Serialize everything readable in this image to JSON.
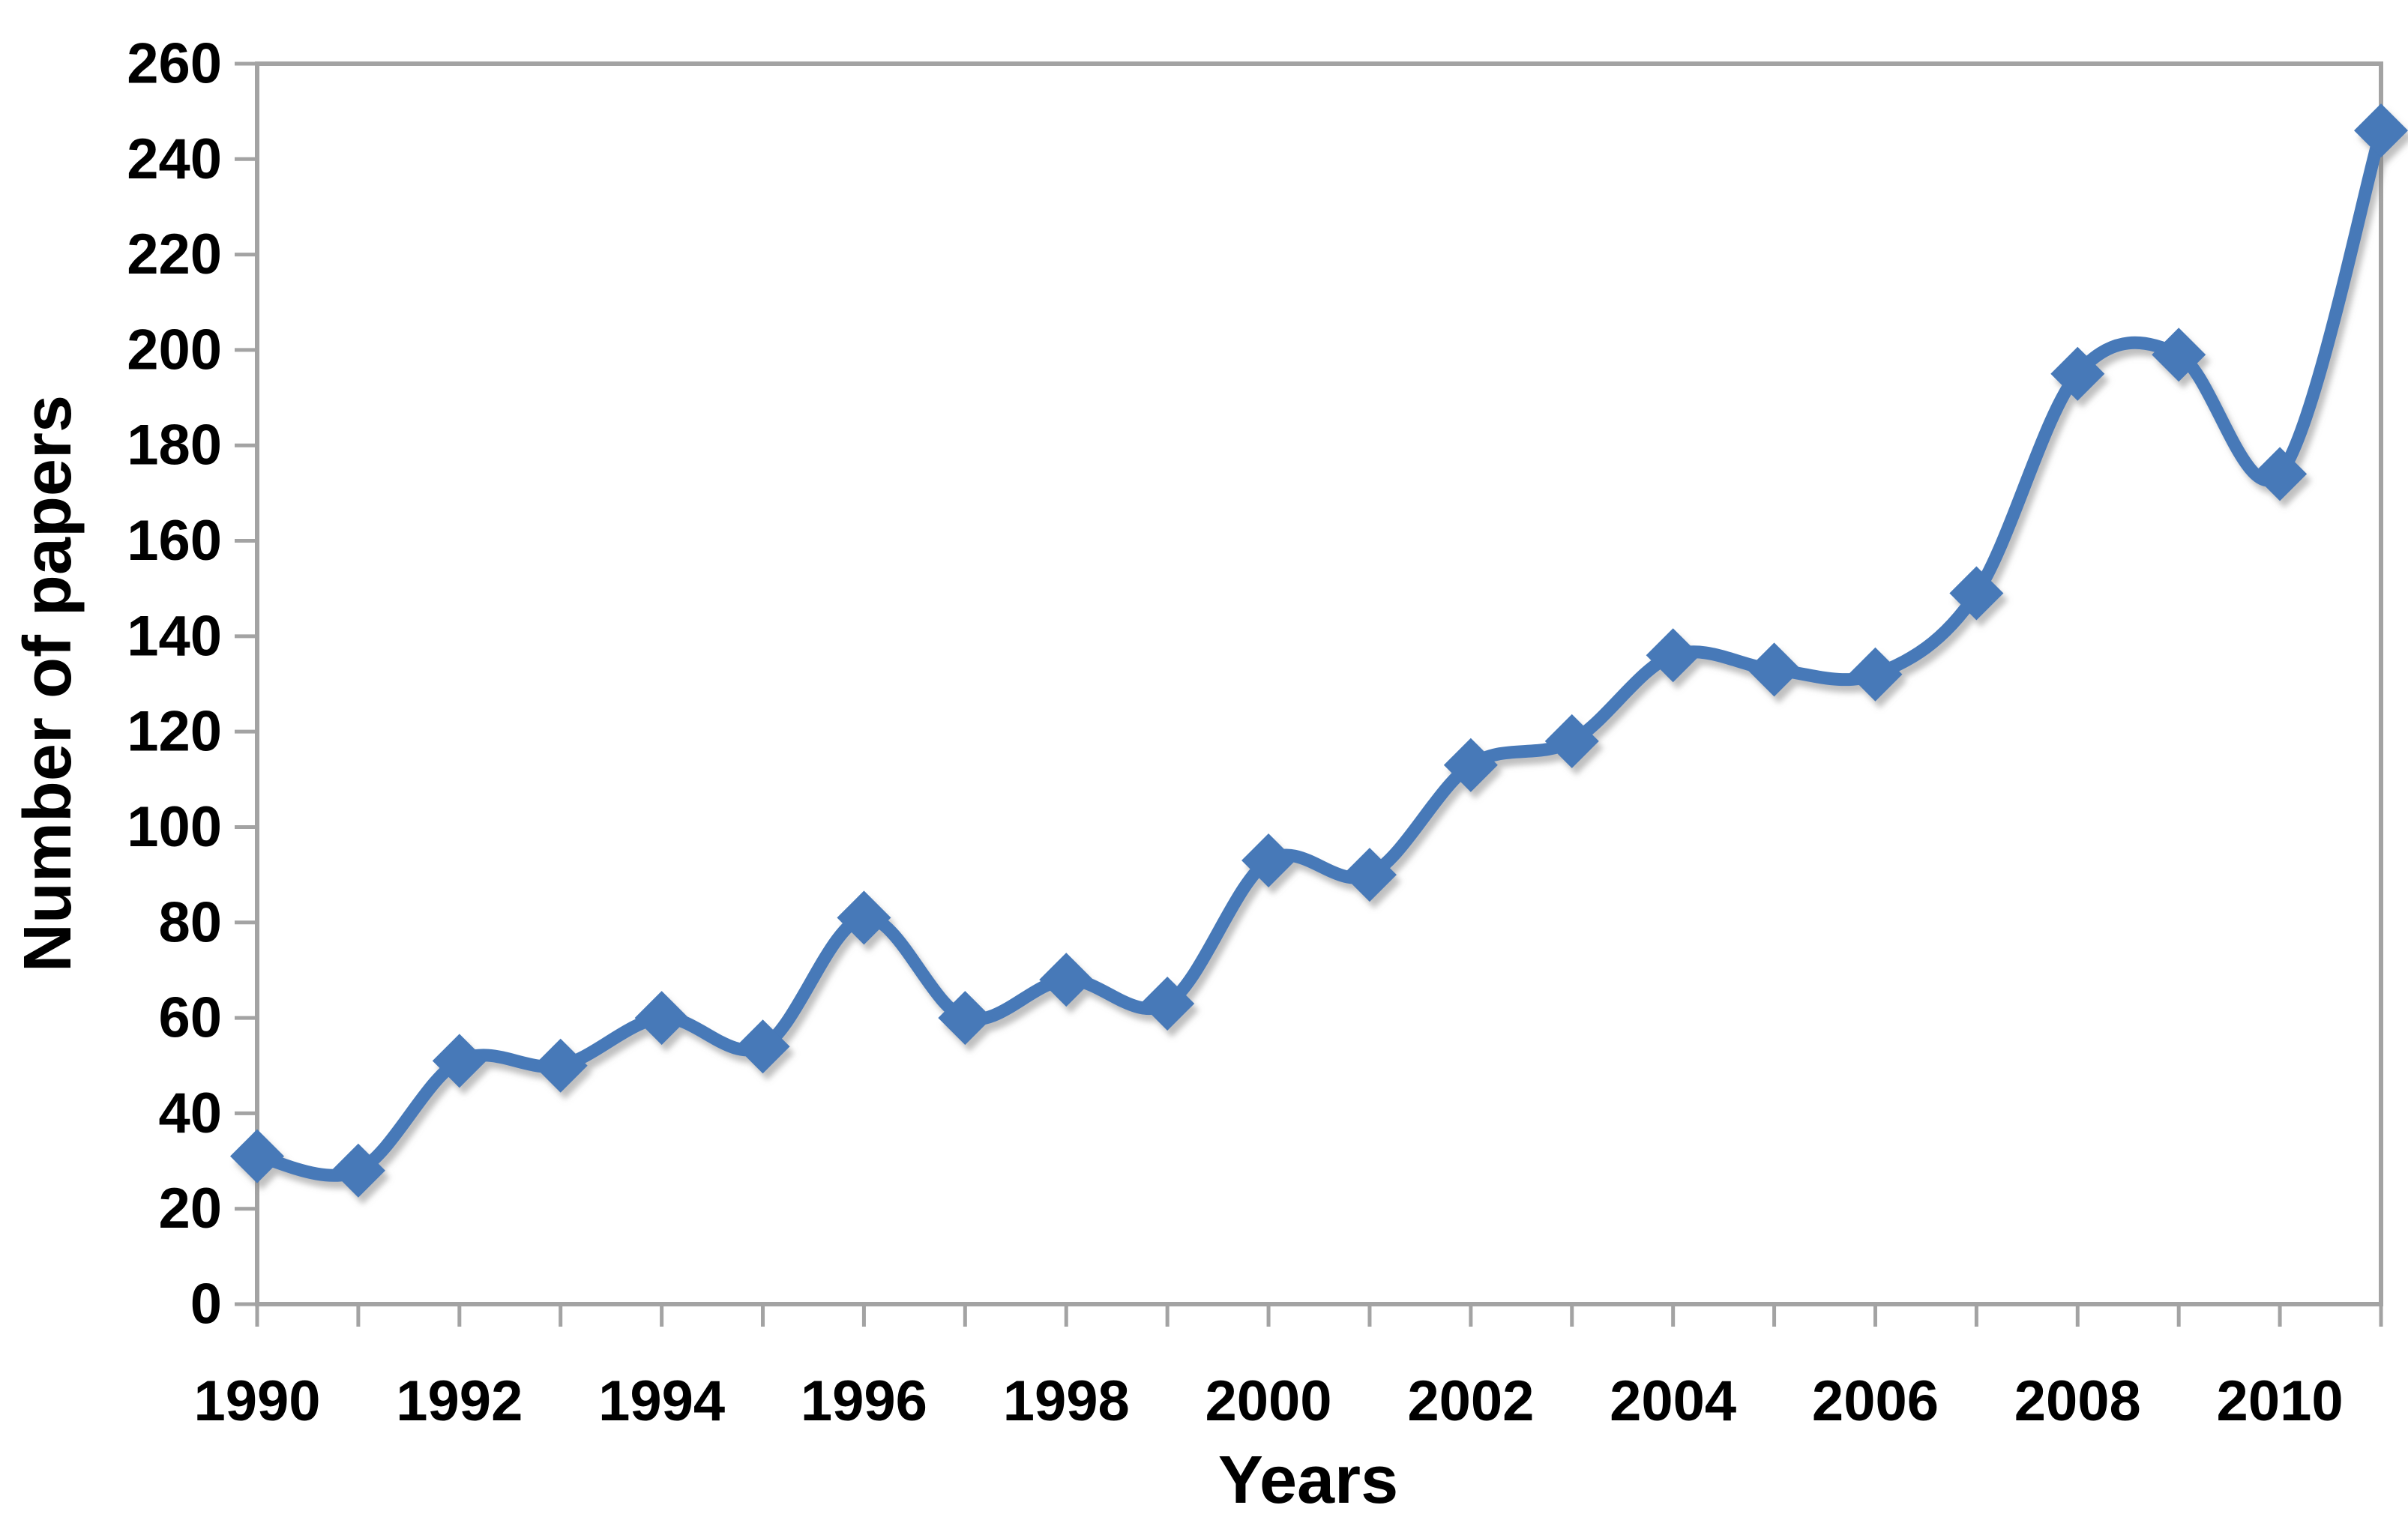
{
  "figure": {
    "background": "#ffffff",
    "text_color": "#000000"
  },
  "chart_data": {
    "type": "line",
    "title": "",
    "xlabel": "Years",
    "ylabel": "Number of papers",
    "x": [
      1990,
      1991,
      1992,
      1993,
      1994,
      1995,
      1996,
      1997,
      1998,
      1999,
      2000,
      2001,
      2002,
      2003,
      2004,
      2005,
      2006,
      2007,
      2008,
      2009,
      2010,
      2011
    ],
    "series": [
      {
        "name": "Number of papers",
        "values": [
          31,
          28,
          51,
          50,
          60,
          54,
          81,
          60,
          68,
          63,
          93,
          90,
          113,
          118,
          136,
          133,
          132,
          149,
          195,
          199,
          174,
          246
        ]
      }
    ],
    "xlim": [
      1990,
      2011
    ],
    "ylim": [
      0,
      260
    ],
    "y_ticks": [
      0,
      20,
      40,
      60,
      80,
      100,
      120,
      140,
      160,
      180,
      200,
      220,
      240,
      260
    ],
    "x_tick_labels": [
      "1990",
      "1992",
      "1994",
      "1996",
      "1998",
      "2000",
      "2002",
      "2004",
      "2006",
      "2008",
      "2010"
    ],
    "x_minor_tick_step_years": 1,
    "grid": false,
    "legend": "none",
    "smooth": true,
    "marker": "diamond",
    "line_color": "#4679b8",
    "marker_color": "#4679b8",
    "axis_color": "#a3a3a3",
    "shadow_color": "#808080"
  }
}
